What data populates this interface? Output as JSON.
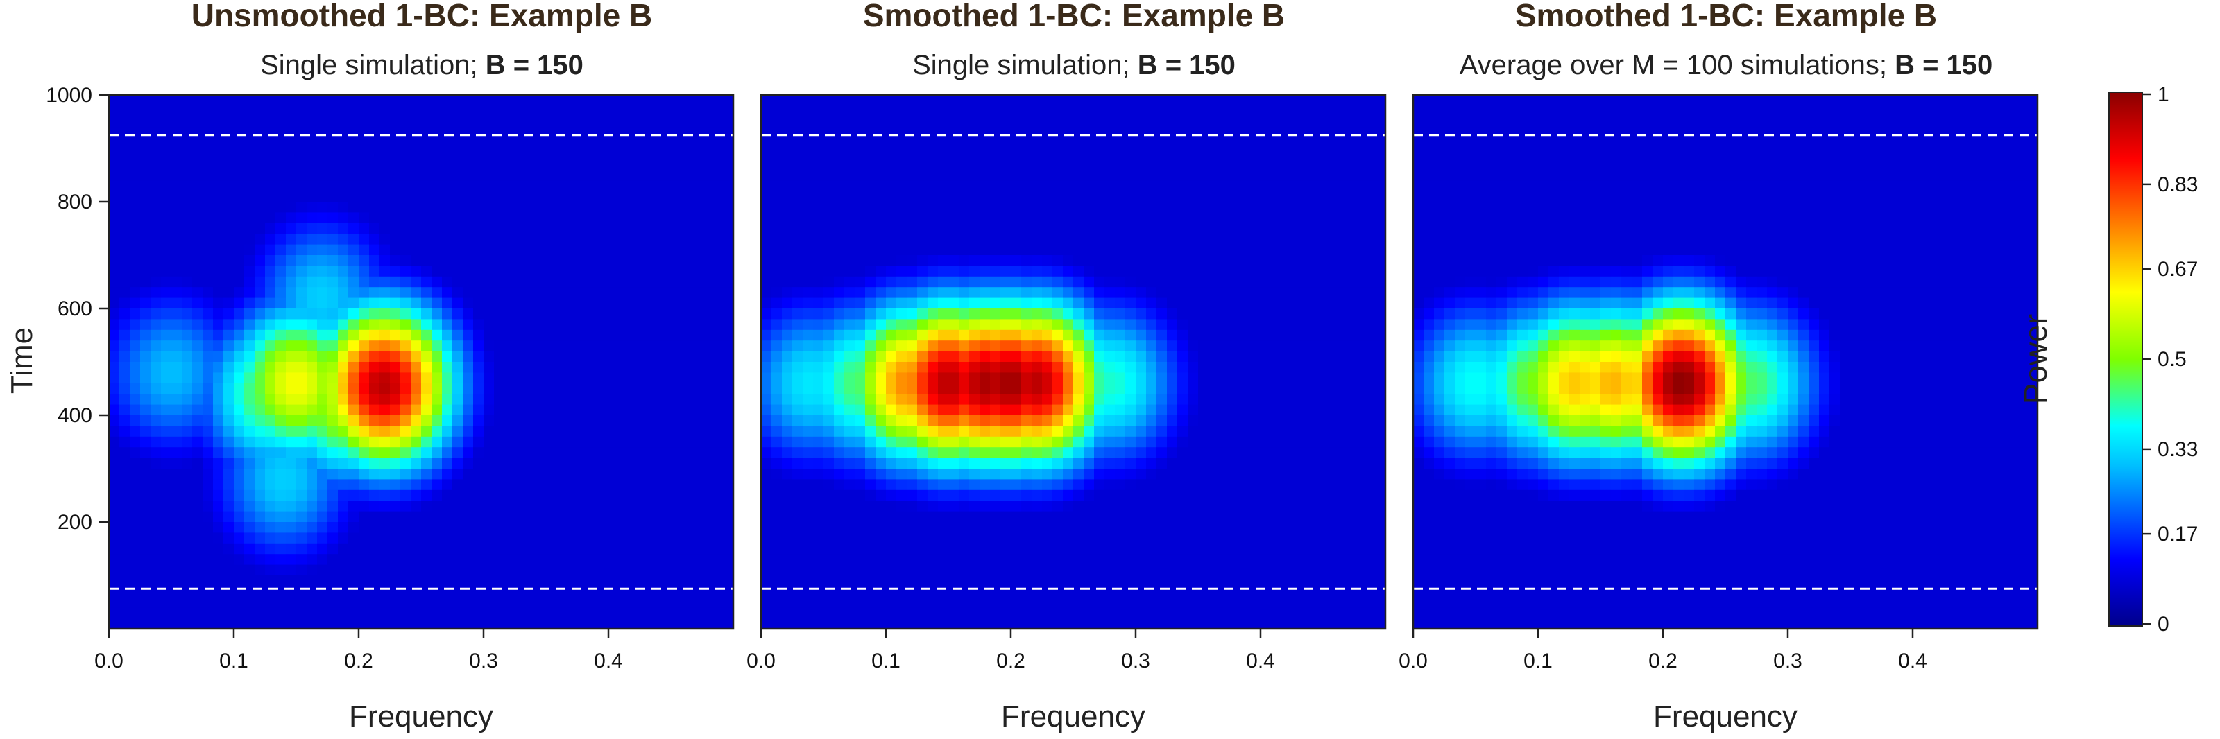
{
  "chart_data": {
    "type": "heatmap",
    "colorbar": {
      "label": "Power",
      "ticks": [
        "0",
        "0.17",
        "0.33",
        "0.5",
        "0.67",
        "0.83",
        "1"
      ],
      "range": [
        0,
        1
      ],
      "colormap": [
        "#00008B",
        "#0000FF",
        "#00BFFF",
        "#00FFFF",
        "#7FFF00",
        "#FFFF00",
        "#FF8000",
        "#FF0000",
        "#8B0000"
      ]
    },
    "panels": [
      {
        "title": "Unsmoothed 1-BC: Example B",
        "subtitle_prefix": "Single simulation; ",
        "subtitle_bold": "B = 150",
        "xlabel": "Frequency",
        "ylabel": "Time",
        "xlim": [
          0,
          0.5
        ],
        "ylim": [
          0,
          1000
        ],
        "xticks": [
          "0.0",
          "0.1",
          "0.2",
          "0.3",
          "0.4"
        ],
        "yticks": [
          "200",
          "400",
          "600",
          "800",
          "1000"
        ],
        "dashed_time_lines": [
          75,
          925
        ],
        "peaks": [
          {
            "frequency": 0.22,
            "time": 455,
            "power": 0.95
          },
          {
            "frequency": 0.15,
            "time": 460,
            "power": 0.62
          },
          {
            "frequency": 0.19,
            "time": 430,
            "power": 0.58
          },
          {
            "frequency": 0.13,
            "time": 440,
            "power": 0.48
          },
          {
            "frequency": 0.17,
            "time": 620,
            "power": 0.32
          },
          {
            "frequency": 0.14,
            "time": 280,
            "power": 0.32
          },
          {
            "frequency": 0.05,
            "time": 480,
            "power": 0.3
          }
        ]
      },
      {
        "title": "Smoothed 1-BC: Example B",
        "subtitle_prefix": "Single simulation; ",
        "subtitle_bold": "B = 150",
        "xlabel": "Frequency",
        "ylabel": "",
        "xlim": [
          0,
          0.5
        ],
        "ylim": [
          0,
          1000
        ],
        "xticks": [
          "0.0",
          "0.1",
          "0.2",
          "0.3",
          "0.4"
        ],
        "yticks": [],
        "dashed_time_lines": [
          75,
          925
        ],
        "peaks": [
          {
            "frequency": 0.15,
            "time": 460,
            "power": 0.95
          },
          {
            "frequency": 0.18,
            "time": 460,
            "power": 0.97
          },
          {
            "frequency": 0.2,
            "time": 460,
            "power": 0.98
          },
          {
            "frequency": 0.22,
            "time": 460,
            "power": 0.95
          },
          {
            "frequency": 0.12,
            "time": 460,
            "power": 0.75
          },
          {
            "frequency": 0.08,
            "time": 460,
            "power": 0.45
          },
          {
            "frequency": 0.04,
            "time": 460,
            "power": 0.35
          },
          {
            "frequency": 0.28,
            "time": 460,
            "power": 0.4
          }
        ]
      },
      {
        "title": "Smoothed 1-BC: Example B",
        "subtitle_prefix": "Average over M = 100 simulations; ",
        "subtitle_bold": "B = 150",
        "xlabel": "Frequency",
        "ylabel": "",
        "xlim": [
          0,
          0.5
        ],
        "ylim": [
          0,
          1000
        ],
        "xticks": [
          "0.0",
          "0.1",
          "0.2",
          "0.3",
          "0.4"
        ],
        "yticks": [],
        "dashed_time_lines": [
          75,
          925
        ],
        "peaks": [
          {
            "frequency": 0.215,
            "time": 460,
            "power": 1.0
          },
          {
            "frequency": 0.16,
            "time": 460,
            "power": 0.7
          },
          {
            "frequency": 0.13,
            "time": 460,
            "power": 0.68
          },
          {
            "frequency": 0.1,
            "time": 460,
            "power": 0.5
          },
          {
            "frequency": 0.05,
            "time": 460,
            "power": 0.38
          },
          {
            "frequency": 0.27,
            "time": 460,
            "power": 0.45
          }
        ]
      }
    ]
  }
}
